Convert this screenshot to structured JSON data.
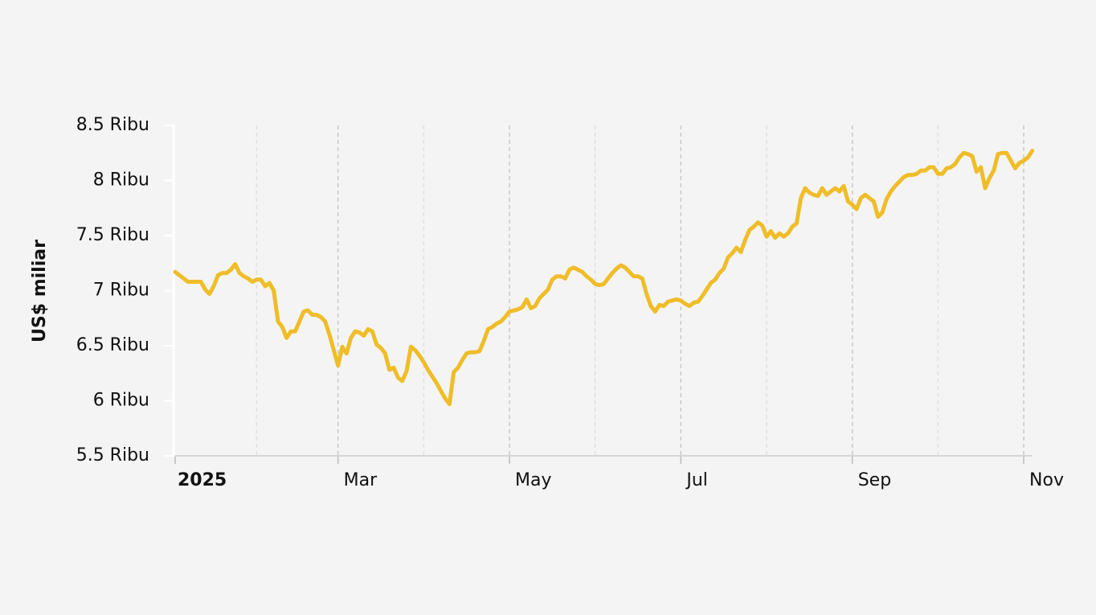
{
  "chart_data": {
    "type": "line",
    "y_label": "US$ miliar",
    "categories": [
      "2025",
      null,
      null,
      null,
      null,
      null,
      null,
      null,
      null,
      null,
      null,
      null,
      null,
      null,
      null,
      null,
      null,
      null,
      null,
      null,
      null,
      null,
      null,
      null,
      null,
      null,
      null,
      null,
      null,
      null,
      null,
      null,
      null,
      null,
      null,
      null,
      null,
      null,
      "Mar",
      null,
      null,
      null,
      null,
      null,
      null,
      null,
      null,
      null,
      null,
      null,
      null,
      null,
      null,
      null,
      null,
      null,
      null,
      null,
      null,
      null,
      null,
      null,
      null,
      null,
      null,
      null,
      null,
      null,
      null,
      null,
      null,
      null,
      null,
      null,
      null,
      null,
      null,
      null,
      "May",
      null,
      null,
      null,
      null,
      null,
      null,
      null,
      null,
      null,
      null,
      null,
      null,
      null,
      null,
      null,
      null,
      null,
      null,
      null,
      null,
      null,
      null,
      null,
      null,
      null,
      null,
      null,
      null,
      null,
      null,
      null,
      null,
      null,
      null,
      null,
      null,
      null,
      null,
      null,
      "Jul",
      null,
      null,
      null,
      null,
      null,
      null,
      null,
      null,
      null,
      null,
      null,
      null,
      null,
      null,
      null,
      null,
      null,
      null,
      null,
      null,
      null,
      null,
      null,
      null,
      null,
      null,
      null,
      null,
      null,
      null,
      null,
      null,
      null,
      null,
      null,
      null,
      null,
      null,
      null,
      "Sep",
      null,
      null,
      null,
      null,
      null,
      null,
      null,
      null,
      null,
      null,
      null,
      null,
      null,
      null,
      null,
      null,
      null,
      null,
      null,
      null,
      null,
      null,
      null,
      null,
      null,
      null,
      null,
      null,
      null,
      null,
      null,
      null,
      null,
      null,
      null,
      null,
      null,
      null,
      null,
      "Nov",
      null,
      null
    ],
    "values": [
      7.17,
      7.14,
      7.11,
      7.08,
      7.08,
      7.08,
      7.08,
      7.01,
      6.97,
      7.04,
      7.14,
      7.16,
      7.16,
      7.19,
      7.24,
      7.16,
      7.13,
      7.11,
      7.08,
      7.1,
      7.1,
      7.04,
      7.07,
      7.0,
      6.72,
      6.67,
      6.57,
      6.63,
      6.63,
      6.72,
      6.81,
      6.82,
      6.78,
      6.78,
      6.76,
      6.72,
      6.6,
      6.46,
      6.32,
      6.49,
      6.43,
      6.57,
      6.63,
      6.62,
      6.59,
      6.65,
      6.63,
      6.51,
      6.48,
      6.43,
      6.28,
      6.3,
      6.21,
      6.18,
      6.27,
      6.49,
      6.46,
      6.41,
      6.35,
      6.28,
      6.22,
      6.16,
      6.09,
      6.02,
      5.97,
      6.26,
      6.3,
      6.37,
      6.43,
      6.44,
      6.44,
      6.45,
      6.54,
      6.65,
      6.67,
      6.7,
      6.72,
      6.76,
      6.81,
      6.82,
      6.83,
      6.85,
      6.92,
      6.84,
      6.86,
      6.93,
      6.97,
      7.01,
      7.1,
      7.13,
      7.13,
      7.11,
      7.19,
      7.21,
      7.19,
      7.17,
      7.13,
      7.1,
      7.06,
      7.05,
      7.06,
      7.11,
      7.16,
      7.2,
      7.23,
      7.21,
      7.17,
      7.13,
      7.13,
      7.11,
      6.97,
      6.86,
      6.81,
      6.87,
      6.86,
      6.9,
      6.91,
      6.92,
      6.91,
      6.88,
      6.86,
      6.89,
      6.9,
      6.95,
      7.01,
      7.07,
      7.1,
      7.16,
      7.2,
      7.3,
      7.34,
      7.39,
      7.35,
      7.46,
      7.55,
      7.58,
      7.62,
      7.59,
      7.49,
      7.54,
      7.48,
      7.52,
      7.49,
      7.52,
      7.58,
      7.61,
      7.84,
      7.93,
      7.89,
      7.87,
      7.86,
      7.93,
      7.87,
      7.9,
      7.93,
      7.9,
      7.95,
      7.81,
      7.78,
      7.74,
      7.84,
      7.87,
      7.84,
      7.81,
      7.67,
      7.71,
      7.83,
      7.9,
      7.95,
      7.99,
      8.03,
      8.05,
      8.05,
      8.06,
      8.09,
      8.09,
      8.12,
      8.12,
      8.06,
      8.06,
      8.11,
      8.12,
      8.15,
      8.21,
      8.25,
      8.24,
      8.22,
      8.08,
      8.12,
      7.93,
      8.02,
      8.09,
      8.24,
      8.25,
      8.25,
      8.18,
      8.11,
      8.16,
      8.18,
      8.21,
      8.27
    ],
    "color": "#efbd29",
    "ylim": [
      5.5,
      8.5
    ],
    "yticks": [
      {
        "value": 5.5,
        "label": "5.5 Ribu"
      },
      {
        "value": 6,
        "label": "6 Ribu"
      },
      {
        "value": 6.5,
        "label": "6.5 Ribu"
      },
      {
        "value": 7,
        "label": "7 Ribu"
      },
      {
        "value": 7.5,
        "label": "7.5 Ribu"
      },
      {
        "value": 8,
        "label": "8 Ribu"
      },
      {
        "value": 8.5,
        "label": "8.5 Ribu"
      }
    ],
    "grid": true
  }
}
